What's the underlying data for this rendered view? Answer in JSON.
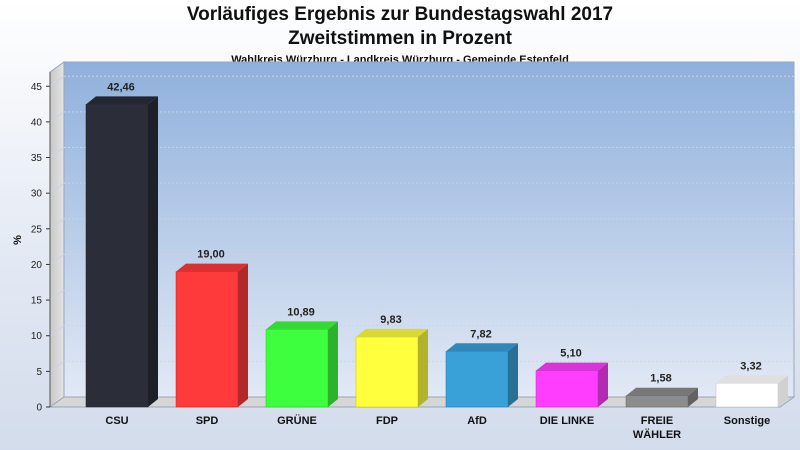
{
  "chart_data": {
    "type": "bar",
    "title": "Vorläufiges Ergebnis zur Bundestagswahl 2017",
    "title2": "Zweitstimmen in Prozent",
    "subtitle": "Wahlkreis Würzburg - Landkreis Würzburg - Gemeinde Estenfeld",
    "ylabel": "%",
    "ylim": [
      0,
      47
    ],
    "yticks": [
      0,
      5,
      10,
      15,
      20,
      25,
      30,
      35,
      40,
      45
    ],
    "grid": true,
    "categories": [
      {
        "label": "CSU",
        "label2": ""
      },
      {
        "label": "SPD",
        "label2": ""
      },
      {
        "label": "GRÜNE",
        "label2": ""
      },
      {
        "label": "FDP",
        "label2": ""
      },
      {
        "label": "AfD",
        "label2": ""
      },
      {
        "label": "DIE LINKE",
        "label2": ""
      },
      {
        "label": "FREIE",
        "label2": "WÄHLER"
      },
      {
        "label": "Sonstige",
        "label2": ""
      }
    ],
    "values": [
      42.46,
      19.0,
      10.89,
      9.83,
      7.82,
      5.1,
      1.58,
      3.32
    ],
    "value_labels": [
      "42,46",
      "19,00",
      "10,89",
      "9,83",
      "7,82",
      "5,10",
      "1,58",
      "3,32"
    ],
    "colors": [
      "#2b2e38",
      "#ff3a3a",
      "#3dff3d",
      "#ffff3d",
      "#3aa0d8",
      "#ff3dff",
      "#8c8c8c",
      "#ffffff"
    ]
  }
}
